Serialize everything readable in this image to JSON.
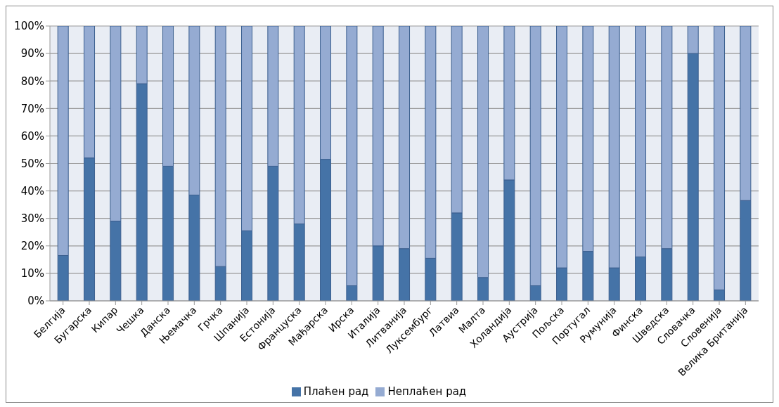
{
  "chart_data": {
    "type": "bar",
    "stacked": true,
    "categories": [
      "Белгија",
      "Бугарска",
      "Кипар",
      "Чешка",
      "Данска",
      "Њемачка",
      "Грчка",
      "Шпанија",
      "Естонија",
      "Француска",
      "Мађарска",
      "Ирска",
      "Италија",
      "Литванија",
      "Луксембург",
      "Латвиа",
      "Малта",
      "Холандија",
      "Аустрија",
      "Пољска",
      "Португал",
      "Румунија",
      "Финска",
      "Шведска",
      "Словачка",
      "Словенија",
      "Велика Британија"
    ],
    "series": [
      {
        "name": "Плаћен рад",
        "color": "#4573a7",
        "values": [
          16.5,
          52,
          29,
          79,
          49,
          38.5,
          12.5,
          25.5,
          49,
          28,
          51.5,
          5.5,
          20,
          19,
          15.5,
          32,
          8.5,
          44,
          5.5,
          12,
          18,
          12,
          16,
          19,
          90,
          4,
          36.5
        ]
      },
      {
        "name": "Неплаћен рад",
        "color": "#95abd2",
        "values": [
          83.5,
          48,
          71,
          21,
          51,
          61.5,
          87.5,
          74.5,
          51,
          72,
          48.5,
          94.5,
          80,
          81,
          84.5,
          68,
          91.5,
          56,
          94.5,
          88,
          82,
          88,
          84,
          81,
          10,
          96,
          63.5
        ]
      }
    ],
    "ylim": [
      0,
      100
    ],
    "yticks": [
      {
        "value": 0,
        "label": "0%"
      },
      {
        "value": 10,
        "label": "10%"
      },
      {
        "value": 20,
        "label": "20%"
      },
      {
        "value": 30,
        "label": "30%"
      },
      {
        "value": 40,
        "label": "40%"
      },
      {
        "value": 50,
        "label": "50%"
      },
      {
        "value": 60,
        "label": "60%"
      },
      {
        "value": 70,
        "label": "70%"
      },
      {
        "value": 80,
        "label": "80%"
      },
      {
        "value": 90,
        "label": "90%"
      },
      {
        "value": 100,
        "label": "100%"
      }
    ],
    "grid": "y",
    "legend": "bottom"
  }
}
